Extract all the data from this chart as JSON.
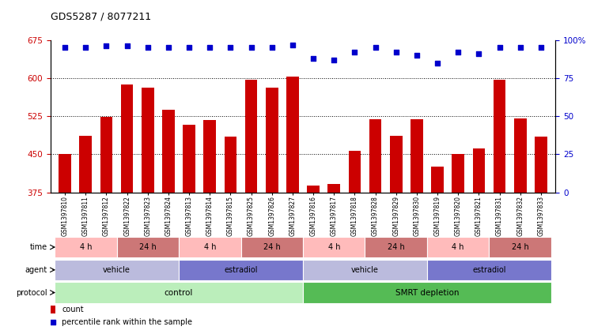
{
  "title": "GDS5287 / 8077211",
  "samples": [
    "GSM1397810",
    "GSM1397811",
    "GSM1397812",
    "GSM1397822",
    "GSM1397823",
    "GSM1397824",
    "GSM1397813",
    "GSM1397814",
    "GSM1397815",
    "GSM1397825",
    "GSM1397826",
    "GSM1397827",
    "GSM1397816",
    "GSM1397817",
    "GSM1397818",
    "GSM1397828",
    "GSM1397829",
    "GSM1397830",
    "GSM1397819",
    "GSM1397820",
    "GSM1397821",
    "GSM1397831",
    "GSM1397832",
    "GSM1397833"
  ],
  "bar_values": [
    451,
    487,
    524,
    588,
    582,
    538,
    508,
    518,
    485,
    597,
    582,
    603,
    388,
    392,
    457,
    519,
    487,
    519,
    425,
    450,
    461,
    597,
    521,
    485
  ],
  "percentile_values": [
    95,
    95,
    96,
    96,
    95,
    95,
    95,
    95,
    95,
    95,
    95,
    97,
    88,
    87,
    92,
    95,
    92,
    90,
    85,
    92,
    91,
    95,
    95,
    95
  ],
  "ylim_left": [
    375,
    675
  ],
  "ylim_right": [
    0,
    100
  ],
  "yticks_left": [
    375,
    450,
    525,
    600,
    675
  ],
  "yticks_right": [
    0,
    25,
    50,
    75,
    100
  ],
  "bar_color": "#cc0000",
  "dot_color": "#0000cc",
  "grid_values": [
    450,
    525,
    600
  ],
  "protocol_control_label": "control",
  "protocol_smrt_label": "SMRT depletion",
  "protocol_control_color": "#bbeebb",
  "protocol_smrt_color": "#55bb55",
  "agent_vehicle_color": "#bbbbdd",
  "agent_estradiol_color": "#7777cc",
  "time_4h_color": "#ffbbbb",
  "time_24h_color": "#cc7777",
  "agent_segments": [
    {
      "label": "vehicle",
      "start": 0,
      "end": 5
    },
    {
      "label": "estradiol",
      "start": 6,
      "end": 11
    },
    {
      "label": "vehicle",
      "start": 12,
      "end": 17
    },
    {
      "label": "estradiol",
      "start": 18,
      "end": 23
    }
  ],
  "time_segments": [
    {
      "label": "4 h",
      "start": 0,
      "end": 2
    },
    {
      "label": "24 h",
      "start": 3,
      "end": 5
    },
    {
      "label": "4 h",
      "start": 6,
      "end": 8
    },
    {
      "label": "24 h",
      "start": 9,
      "end": 11
    },
    {
      "label": "4 h",
      "start": 12,
      "end": 14
    },
    {
      "label": "24 h",
      "start": 15,
      "end": 17
    },
    {
      "label": "4 h",
      "start": 18,
      "end": 20
    },
    {
      "label": "24 h",
      "start": 21,
      "end": 23
    }
  ],
  "row_labels": [
    "protocol",
    "agent",
    "time"
  ],
  "legend_items": [
    "count",
    "percentile rank within the sample"
  ],
  "legend_colors": [
    "#cc0000",
    "#0000cc"
  ],
  "right_tick_labels": [
    "0",
    "25",
    "50",
    "75",
    "100%"
  ],
  "n_bars": 24,
  "bar_width": 0.6
}
